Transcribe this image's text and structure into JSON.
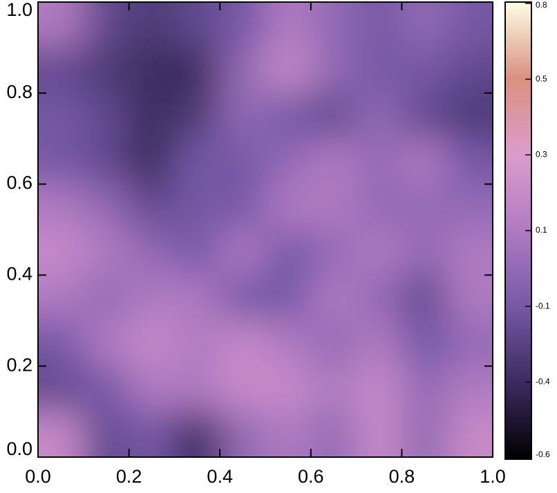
{
  "chart_data": {
    "type": "heatmap",
    "xlim": [
      0,
      1
    ],
    "ylim": [
      0,
      1
    ],
    "xticks": [
      {
        "value": 0,
        "label": "0.0"
      },
      0.2,
      0.4,
      0.6,
      0.8,
      {
        "value": 1,
        "label": "1.0"
      }
    ],
    "yticks": [
      {
        "value": 0,
        "label": "0.0"
      },
      0.2,
      0.4,
      0.6,
      0.8,
      {
        "value": 1,
        "label": "1.0"
      }
    ],
    "z": [
      [
        0.1,
        -0.2,
        -0.3,
        -0.2,
        -0.1,
        0.1,
        0.0,
        -0.1,
        0.0,
        -0.1
      ],
      [
        -0.2,
        -0.3,
        -0.4,
        -0.4,
        0.0,
        0.2,
        0.0,
        -0.1,
        -0.1,
        -0.2
      ],
      [
        -0.1,
        -0.2,
        -0.4,
        -0.3,
        0.0,
        -0.1,
        -0.2,
        0.0,
        -0.2,
        -0.3
      ],
      [
        -0.1,
        -0.2,
        -0.4,
        -0.1,
        -0.1,
        0.0,
        0.1,
        0.0,
        0.1,
        -0.1
      ],
      [
        0.1,
        0.0,
        -0.2,
        -0.1,
        -0.1,
        0.1,
        0.1,
        0.0,
        0.0,
        0.0
      ],
      [
        0.2,
        0.1,
        0.0,
        -0.1,
        0.1,
        -0.1,
        0.0,
        0.1,
        0.0,
        0.1
      ],
      [
        0.1,
        0.0,
        0.1,
        0.1,
        -0.1,
        -0.1,
        0.1,
        0.0,
        -0.2,
        0.1
      ],
      [
        -0.1,
        0.1,
        0.2,
        0.1,
        0.2,
        0.1,
        0.0,
        0.1,
        -0.1,
        0.0
      ],
      [
        -0.2,
        -0.1,
        0.1,
        0.1,
        0.2,
        0.2,
        0.1,
        0.2,
        0.0,
        0.1
      ],
      [
        0.2,
        -0.2,
        -0.1,
        -0.4,
        0.0,
        0.1,
        0.0,
        0.2,
        0.0,
        0.2
      ]
    ],
    "clim": [
      -0.6,
      0.8
    ],
    "cticks": [
      -0.6,
      -0.4,
      -0.1,
      0.1,
      0.3,
      0.5,
      0.8
    ],
    "colormap": [
      "#000000",
      "#3b2a5e",
      "#7559a6",
      "#b07ac2",
      "#dc9ccc",
      "#d9917f",
      "#fffde6"
    ]
  }
}
